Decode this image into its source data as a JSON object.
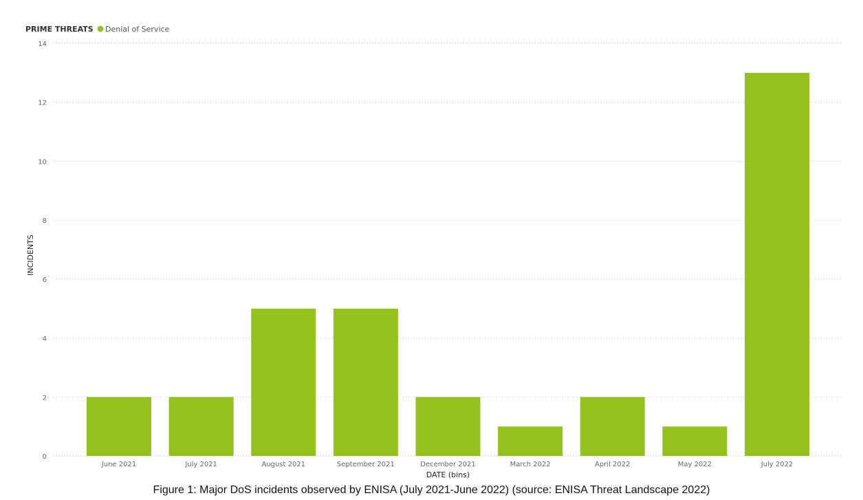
{
  "chart_data": {
    "type": "bar",
    "legend": {
      "title": "PRIME THREATS",
      "entries": [
        {
          "name": "Denial of Service",
          "color": "#95c11f"
        }
      ],
      "placement": "top-left"
    },
    "categories": [
      "June 2021",
      "July 2021",
      "August 2021",
      "September 2021",
      "December 2021",
      "March 2022",
      "April 2022",
      "May 2022",
      "July 2022"
    ],
    "series": [
      {
        "name": "Denial of Service",
        "color": "#95c11f",
        "values": [
          2,
          2,
          5,
          5,
          2,
          1,
          2,
          1,
          13
        ]
      }
    ],
    "xlabel": "DATE (bins)",
    "ylabel": "INCIDENTS",
    "ylim": [
      0,
      14
    ],
    "yticks": [
      0,
      2,
      4,
      6,
      8,
      10,
      12,
      14
    ],
    "grid": true
  },
  "caption": "Figure 1: Major DoS incidents observed by ENISA (July 2021-June 2022) (source: ENISA Threat Landscape 2022)"
}
